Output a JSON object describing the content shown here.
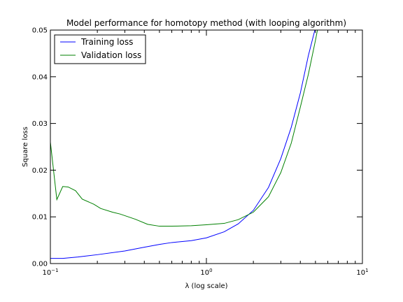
{
  "chart_data": {
    "type": "line",
    "title": "Model performance for homotopy method (with looping algorithm)",
    "xlabel": "λ (log scale)",
    "ylabel": "Square loss",
    "xscale": "log",
    "xlim": [
      0.1,
      10
    ],
    "ylim": [
      0,
      0.05
    ],
    "x_ticks": [
      {
        "value": 0.1,
        "base": "10",
        "exp": "−1"
      },
      {
        "value": 1,
        "base": "10",
        "exp": "0"
      },
      {
        "value": 10,
        "base": "10",
        "exp": "1"
      }
    ],
    "y_ticks": [
      {
        "value": 0.0,
        "label": "0.00"
      },
      {
        "value": 0.01,
        "label": "0.01"
      },
      {
        "value": 0.02,
        "label": "0.02"
      },
      {
        "value": 0.03,
        "label": "0.03"
      },
      {
        "value": 0.04,
        "label": "0.04"
      },
      {
        "value": 0.05,
        "label": "0.05"
      }
    ],
    "grid": false,
    "legend_position": "top-left",
    "series": [
      {
        "name": "Training loss",
        "color": "#0000ff",
        "x": [
          0.1,
          0.12,
          0.15,
          0.2,
          0.3,
          0.4,
          0.5,
          0.6,
          0.8,
          1.0,
          1.3,
          1.6,
          2.0,
          2.5,
          3.0,
          3.5,
          4.0,
          4.5,
          5.0,
          5.3
        ],
        "y": [
          0.0011,
          0.0011,
          0.0014,
          0.0019,
          0.0027,
          0.0035,
          0.0041,
          0.0045,
          0.0049,
          0.0055,
          0.0068,
          0.0085,
          0.0114,
          0.0163,
          0.0225,
          0.0292,
          0.0365,
          0.0445,
          0.0505,
          0.0545
        ]
      },
      {
        "name": "Validation loss",
        "color": "#008000",
        "x": [
          0.1,
          0.11,
          0.12,
          0.13,
          0.145,
          0.16,
          0.19,
          0.21,
          0.25,
          0.28,
          0.35,
          0.42,
          0.5,
          0.6,
          0.8,
          1.0,
          1.3,
          1.6,
          2.0,
          2.5,
          3.0,
          3.5,
          4.0,
          4.5,
          5.0,
          5.4
        ],
        "y": [
          0.026,
          0.0137,
          0.0165,
          0.0164,
          0.0156,
          0.0138,
          0.0127,
          0.0118,
          0.011,
          0.0106,
          0.0095,
          0.0084,
          0.008,
          0.008,
          0.0081,
          0.0083,
          0.0086,
          0.0094,
          0.011,
          0.0143,
          0.0195,
          0.0258,
          0.0335,
          0.0405,
          0.0478,
          0.0535
        ]
      }
    ]
  }
}
